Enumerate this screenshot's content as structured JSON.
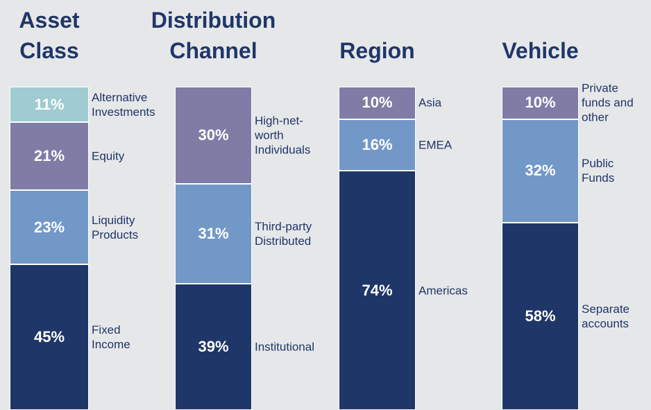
{
  "chart_data": [
    {
      "type": "stacked_bar",
      "title": "Asset Class",
      "series": [
        {
          "name": "Alternative Investments",
          "color": "#9fcbd1",
          "values": [
            11
          ],
          "value_labels": [
            "11%"
          ]
        },
        {
          "name": "Equity",
          "color": "#7f7ca6",
          "values": [
            21
          ],
          "value_labels": [
            "21%"
          ]
        },
        {
          "name": "Liquidity Products",
          "color": "#7298c7",
          "values": [
            23
          ],
          "value_labels": [
            "23%"
          ]
        },
        {
          "name": "Fixed Income",
          "color": "#1f3668",
          "values": [
            45
          ],
          "value_labels": [
            "45%"
          ]
        }
      ]
    },
    {
      "type": "stacked_bar",
      "title": "Distribution Channel",
      "series": [
        {
          "name": "High-net-worth Individuals",
          "color": "#7f7ca6",
          "values": [
            30
          ],
          "value_labels": [
            "30%"
          ]
        },
        {
          "name": "Third-party Distributed",
          "color": "#7298c7",
          "values": [
            31
          ],
          "value_labels": [
            "31%"
          ]
        },
        {
          "name": "Institutional",
          "color": "#1f3668",
          "values": [
            39
          ],
          "value_labels": [
            "39%"
          ]
        }
      ]
    },
    {
      "type": "stacked_bar",
      "title": "Region",
      "series": [
        {
          "name": "Asia",
          "color": "#7f7ca6",
          "values": [
            10
          ],
          "value_labels": [
            "10%"
          ]
        },
        {
          "name": "EMEA",
          "color": "#7298c7",
          "values": [
            16
          ],
          "value_labels": [
            "16%"
          ]
        },
        {
          "name": "Americas",
          "color": "#1f3668",
          "values": [
            74
          ],
          "value_labels": [
            "74%"
          ]
        }
      ]
    },
    {
      "type": "stacked_bar",
      "title": "Vehicle",
      "series": [
        {
          "name": "Private funds and other",
          "color": "#7f7ca6",
          "values": [
            10
          ],
          "value_labels": [
            "10%"
          ]
        },
        {
          "name": "Public Funds",
          "color": "#7298c7",
          "values": [
            32
          ],
          "value_labels": [
            "32%"
          ]
        },
        {
          "name": "Separate accounts",
          "color": "#1f3668",
          "values": [
            58
          ],
          "value_labels": [
            "58%"
          ]
        }
      ]
    }
  ]
}
